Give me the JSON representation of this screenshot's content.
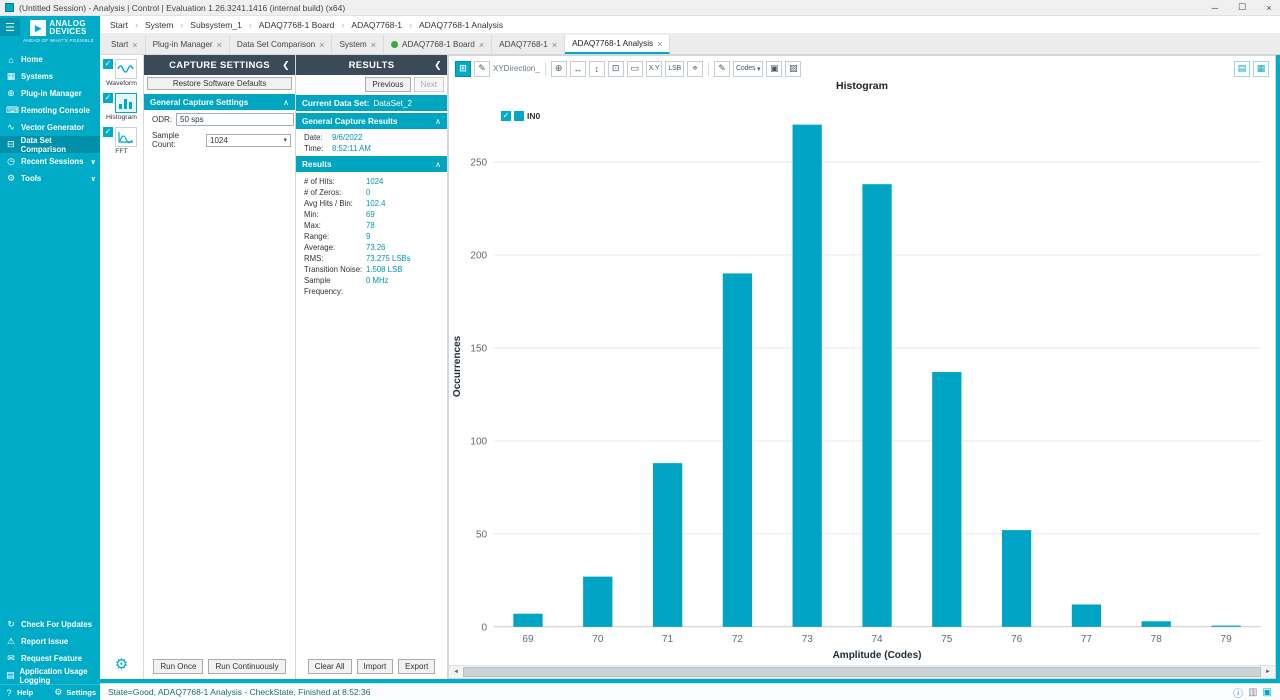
{
  "window": {
    "title": "(Untitled Session) - Analysis | Control | Evaluation 1.26.3241.1416 (internal build) (x64)"
  },
  "icons": {
    "hamburger": "☰",
    "minimize": "─",
    "maximize": "☐",
    "close": "×",
    "tab_close": "×",
    "breadcrumb_sep": "›",
    "chevron_down": "∨",
    "collapse_left": "❮",
    "collapse_up": "∧",
    "dropdown": "▾",
    "check": "✓",
    "logo_triangle": "▶",
    "home": "⌂",
    "systems": "▦",
    "plugin": "⊕",
    "remoting": "⌨",
    "vector": "∿",
    "dataset_compare": "⊟",
    "recent": "◷",
    "tools": "⚙",
    "updates": "↻",
    "report": "⚠",
    "feature": "✉",
    "logging": "▤",
    "help": "?",
    "settings": "⚙",
    "add": "⊞",
    "pen": "✎",
    "pan": "⊕",
    "fit_h": "↔",
    "fit_v": "↕",
    "fit": "⊡",
    "box_zoom": "▭",
    "zoom": "⌖",
    "edit": "✎",
    "export": "▣",
    "copy": "▨",
    "list": "▤",
    "grid": "▦",
    "info": "ⓘ",
    "usage": "▥",
    "layout": "▣",
    "scroll_left": "◄",
    "scroll_right": "►"
  },
  "breadcrumb": [
    "Start",
    "System",
    "Subsystem_1",
    "ADAQ7768-1 Board",
    "ADAQ7768-1",
    "ADAQ7768-1 Analysis"
  ],
  "tabs": [
    {
      "label": "Start"
    },
    {
      "label": "Plug-in Manager"
    },
    {
      "label": "Data Set Comparison"
    },
    {
      "label": "System"
    },
    {
      "label": "ADAQ7768-1 Board"
    },
    {
      "label": "ADAQ7768-1"
    },
    {
      "label": "ADAQ7768-1 Analysis"
    }
  ],
  "sidebar": {
    "logo_line1": "ANALOG",
    "logo_line2": "DEVICES",
    "tagline": "AHEAD OF WHAT'S POSSIBLE",
    "items": [
      {
        "label": "Home"
      },
      {
        "label": "Systems"
      },
      {
        "label": "Plug-in Manager"
      },
      {
        "label": "Remoting Console"
      },
      {
        "label": "Vector Generator"
      },
      {
        "label": "Data Set Comparison"
      },
      {
        "label": "Recent Sessions"
      },
      {
        "label": "Tools"
      }
    ],
    "bottom_items": [
      {
        "label": "Check For Updates"
      },
      {
        "label": "Report Issue"
      },
      {
        "label": "Request Feature"
      },
      {
        "label": "Application Usage Logging"
      }
    ],
    "footer": {
      "help": "Help",
      "settings": "Settings"
    }
  },
  "view_strip": {
    "items": [
      {
        "label": "Waveform"
      },
      {
        "label": "Histogram"
      },
      {
        "label": "FFT"
      }
    ]
  },
  "capture_settings": {
    "title": "CAPTURE SETTINGS",
    "restore_button": "Restore Software Defaults",
    "section": "General Capture Settings",
    "odr_label": "ODR:",
    "odr_value": "50 sps",
    "sample_count_label": "Sample Count:",
    "sample_count_value": "1024",
    "run_once": "Run Once",
    "run_continuously": "Run Continuously"
  },
  "results": {
    "title": "RESULTS",
    "previous": "Previous",
    "next": "Next",
    "current_data_set_label": "Current Data Set:",
    "current_data_set_value": "DataSet_2",
    "general_section": "General Capture Results",
    "date_label": "Date:",
    "date_value": "9/6/2022",
    "time_label": "Time:",
    "time_value": "8:52:11 AM",
    "results_section": "Results",
    "metrics": [
      {
        "label": "# of Hits:",
        "value": "1024"
      },
      {
        "label": "# of Zeros:",
        "value": "0"
      },
      {
        "label": "Avg Hits / Bin:",
        "value": "102.4"
      },
      {
        "label": "Min:",
        "value": "69"
      },
      {
        "label": "Max:",
        "value": "78"
      },
      {
        "label": "Range:",
        "value": "9"
      },
      {
        "label": "Average:",
        "value": "73.26"
      },
      {
        "label": "RMS:",
        "value": "73.275 LSBs"
      },
      {
        "label": "Transition Noise:",
        "value": "1.508 LSB"
      },
      {
        "label": "Sample Frequency:",
        "value": "0 MHz"
      }
    ],
    "clear_all": "Clear All",
    "import": "Import",
    "export": "Export"
  },
  "chart_toolbar": {
    "xy_direction": "XYDirection_",
    "xy_label": "X.Y",
    "lsb_label": "LSB",
    "codes_label": "Codes"
  },
  "chart_data": {
    "type": "bar",
    "title": "Histogram",
    "xlabel": "Amplitude (Codes)",
    "ylabel": "Occurrences",
    "legend": [
      "IN0"
    ],
    "categories": [
      69,
      70,
      71,
      72,
      73,
      74,
      75,
      76,
      77,
      78,
      79
    ],
    "values": [
      7,
      27,
      88,
      190,
      270,
      238,
      137,
      52,
      12,
      3,
      0
    ],
    "ylim": [
      0,
      280
    ],
    "yticks": [
      0,
      50,
      100,
      150,
      200,
      250
    ],
    "bar_color": "#00a5c6",
    "grid": true,
    "legend_position": "top-left"
  },
  "status_bar": {
    "text": "State=Good, ADAQ7768-1 Analysis - CheckState, Finished at 8:52:36"
  }
}
